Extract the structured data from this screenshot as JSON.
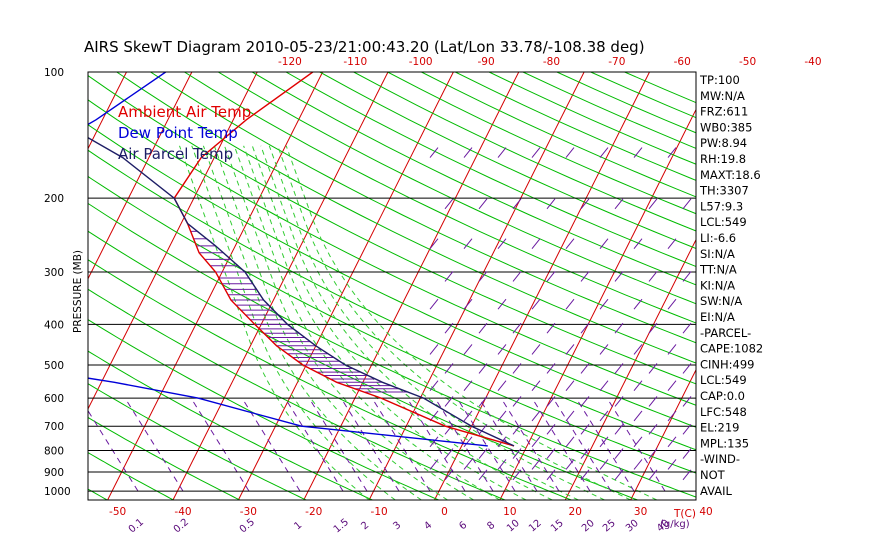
{
  "chart_data": {
    "type": "line",
    "chart_kind": "skew-T log-P diagram",
    "title": "AIRS SkewT Diagram 2010-05-23/21:00:43.20 (Lat/Lon 33.78/-108.38 deg)",
    "ylabel": "PRESSURE (MB)",
    "y_scale": "log",
    "y_axis_reversed": true,
    "pressure_ticks": [
      100,
      200,
      300,
      400,
      500,
      600,
      700,
      800,
      900,
      1000
    ],
    "bottom_temp_ticks": [
      -50,
      -40,
      -30,
      -20,
      -10,
      0,
      10,
      20,
      30,
      40
    ],
    "bottom_temp_unit": "T(C)",
    "top_temp_ticks": [
      -120,
      -110,
      -100,
      -90,
      -80,
      -70,
      -60,
      -50,
      -40
    ],
    "mixing_ratio_ticks": [
      "0.1",
      "0.2",
      "0.5",
      "1",
      "1.5",
      "2",
      "3",
      "4",
      "6",
      "8",
      "10",
      "12",
      "15",
      "20",
      "25",
      "30",
      "40"
    ],
    "mixing_ratio_unit": "(g/kg)",
    "legend_position": "top-left",
    "grid": true,
    "series": [
      {
        "name": "Ambient Air Temp",
        "color": "#e00000",
        "points": [
          [
            100,
            -51.5
          ],
          [
            130,
            -58
          ],
          [
            160,
            -62
          ],
          [
            200,
            -63
          ],
          [
            230,
            -59
          ],
          [
            270,
            -55
          ],
          [
            300,
            -51
          ],
          [
            350,
            -46.5
          ],
          [
            400,
            -41
          ],
          [
            450,
            -36
          ],
          [
            500,
            -30.5
          ],
          [
            550,
            -24
          ],
          [
            600,
            -16
          ],
          [
            700,
            -4
          ],
          [
            780,
            8
          ]
        ]
      },
      {
        "name": "Dew Point Temp",
        "color": "#0000d8",
        "points": [
          [
            100,
            -74
          ],
          [
            130,
            -81
          ],
          [
            160,
            -88
          ],
          [
            200,
            -97
          ],
          [
            250,
            -99
          ],
          [
            300,
            -104
          ],
          [
            350,
            -107
          ],
          [
            400,
            -110
          ],
          [
            450,
            -94
          ],
          [
            500,
            -76
          ],
          [
            550,
            -58
          ],
          [
            600,
            -44
          ],
          [
            700,
            -26
          ],
          [
            780,
            4
          ]
        ]
      },
      {
        "name": "Air Parcel Temp",
        "color": "#1e1e66",
        "points": [
          [
            100,
            -101
          ],
          [
            130,
            -87
          ],
          [
            160,
            -74
          ],
          [
            200,
            -63
          ],
          [
            230,
            -59
          ],
          [
            260,
            -53
          ],
          [
            300,
            -46.5
          ],
          [
            350,
            -41.5
          ],
          [
            400,
            -36
          ],
          [
            450,
            -30
          ],
          [
            500,
            -24
          ],
          [
            550,
            -17
          ],
          [
            600,
            -9.5
          ],
          [
            700,
            0
          ],
          [
            780,
            8
          ]
        ]
      }
    ]
  },
  "legend": {
    "ambient": "Ambient Air Temp",
    "dewpoint": "Dew Point Temp",
    "parcel": "Air Parcel Temp"
  },
  "colors": {
    "isotherm": "#d40000",
    "dry_adiabat": "#00bb00",
    "moist_adiabat": "#33cc33",
    "mixing_ratio": "#6a1aa0",
    "wind": "#6a1aa0",
    "axis": "#000000"
  },
  "side_panel": [
    "TP:100",
    "MW:N/A",
    "FRZ:611",
    "WB0:385",
    "PW:8.94",
    "RH:19.8",
    "MAXT:18.6",
    "TH:3307",
    "L57:9.3",
    "LCL:549",
    "LI:-6.6",
    "SI:N/A",
    "TT:N/A",
    "KI:N/A",
    "SW:N/A",
    "EI:N/A",
    "-PARCEL-",
    "CAPE:1082",
    "CINH:499",
    "LCL:549",
    "CAP:0.0",
    "LFC:548",
    "EL:219",
    "MPL:135",
    "-WIND-",
    "NOT",
    "AVAIL"
  ]
}
